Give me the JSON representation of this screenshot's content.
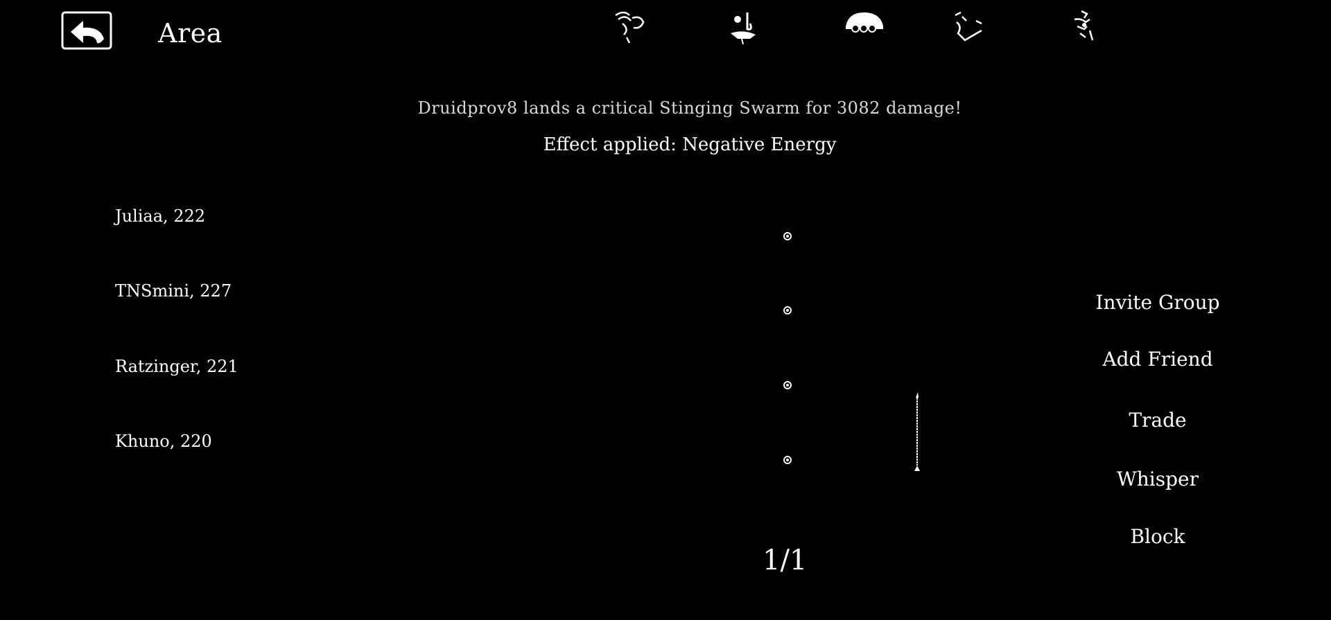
{
  "header": {
    "back_icon": "back-arrow-icon",
    "title": "Area"
  },
  "top_icons": [
    {
      "name": "emote-icon"
    },
    {
      "name": "social-icon"
    },
    {
      "name": "skull-icon"
    },
    {
      "name": "map-icon"
    },
    {
      "name": "settings-icon"
    }
  ],
  "combat_log": {
    "line1": "Druidprov8 lands a critical Stinging Swarm for 3082 damage!",
    "line2": "Effect applied: Negative Energy"
  },
  "players": [
    {
      "label": "Juliaa, 222"
    },
    {
      "label": "TNSmini, 227"
    },
    {
      "label": "Ratzinger, 221"
    },
    {
      "label": "Khuno, 220"
    }
  ],
  "pagination": {
    "label": "1/1"
  },
  "actions": {
    "invite_group": "Invite Group",
    "add_friend": "Add Friend",
    "trade": "Trade",
    "whisper": "Whisper",
    "block": "Block"
  },
  "colors": {
    "background": "#000000",
    "text": "#ffffff",
    "log_dim": "#d9d9d9"
  }
}
